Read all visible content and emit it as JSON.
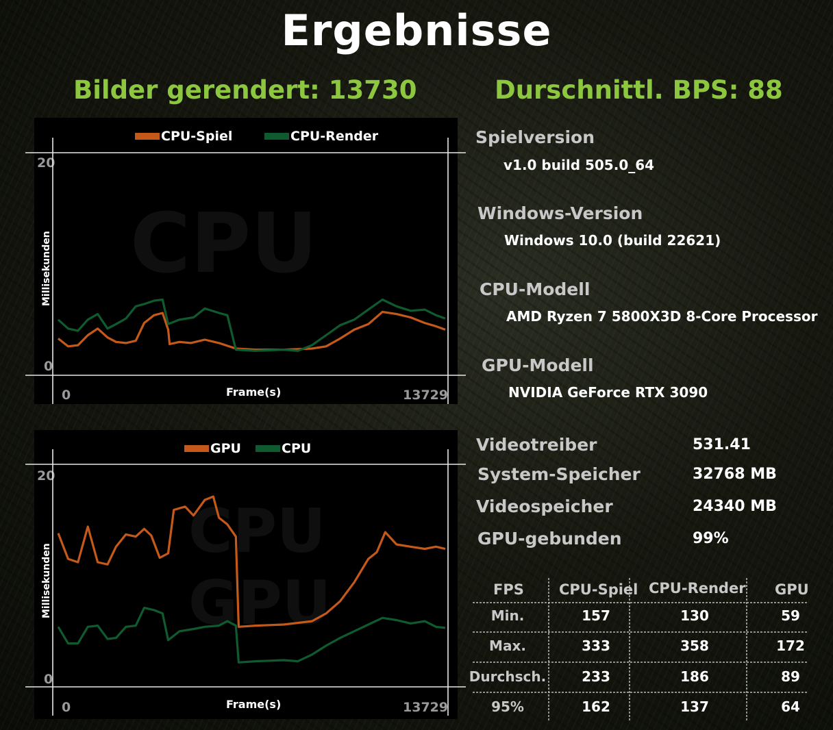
{
  "title": "Ergebnisse",
  "summary": {
    "frames_label": "Bilder gerendert: 13730",
    "avg_label": "Durschnittl. BPS: 88"
  },
  "colors": {
    "accent": "#8dc63f",
    "orange": "#c4591a",
    "green": "#0f5a2e"
  },
  "chart_data": [
    {
      "type": "line",
      "watermark": "CPU",
      "ylabel": "Millisekunden",
      "xlabel": "Frame(s)",
      "ylim": [
        0,
        20
      ],
      "xlim": [
        0,
        13729
      ],
      "y_ticks": [
        "20",
        "0"
      ],
      "x_ticks": [
        "0",
        "13729"
      ],
      "series": [
        {
          "name": "CPU-Spiel",
          "color": "#c4591a",
          "points": [
            [
              0,
              3.3
            ],
            [
              350,
              2.6
            ],
            [
              700,
              2.7
            ],
            [
              1050,
              3.6
            ],
            [
              1400,
              4.2
            ],
            [
              1750,
              3.4
            ],
            [
              2050,
              3.0
            ],
            [
              2400,
              2.9
            ],
            [
              2750,
              3.1
            ],
            [
              3050,
              4.7
            ],
            [
              3400,
              5.4
            ],
            [
              3700,
              5.6
            ],
            [
              3900,
              4.1
            ],
            [
              3950,
              2.8
            ],
            [
              4300,
              3.0
            ],
            [
              4700,
              2.9
            ],
            [
              5200,
              3.2
            ],
            [
              5700,
              2.9
            ],
            [
              6300,
              2.4
            ],
            [
              7000,
              2.3
            ],
            [
              8000,
              2.3
            ],
            [
              9000,
              2.4
            ],
            [
              9500,
              2.6
            ],
            [
              10000,
              3.3
            ],
            [
              10500,
              4.1
            ],
            [
              11000,
              4.6
            ],
            [
              11500,
              5.7
            ],
            [
              12000,
              5.5
            ],
            [
              12500,
              5.2
            ],
            [
              13000,
              4.7
            ],
            [
              13400,
              4.4
            ],
            [
              13729,
              4.1
            ]
          ]
        },
        {
          "name": "CPU-Render",
          "color": "#0f5a2e",
          "points": [
            [
              0,
              5.0
            ],
            [
              350,
              4.2
            ],
            [
              700,
              4.0
            ],
            [
              1050,
              5.0
            ],
            [
              1400,
              5.5
            ],
            [
              1750,
              4.2
            ],
            [
              2050,
              4.6
            ],
            [
              2400,
              5.1
            ],
            [
              2750,
              6.2
            ],
            [
              3050,
              6.4
            ],
            [
              3400,
              6.7
            ],
            [
              3700,
              6.8
            ],
            [
              3900,
              4.6
            ],
            [
              4300,
              5.0
            ],
            [
              4800,
              5.2
            ],
            [
              5200,
              6.0
            ],
            [
              5700,
              5.6
            ],
            [
              6000,
              5.4
            ],
            [
              6300,
              2.3
            ],
            [
              7000,
              2.2
            ],
            [
              8000,
              2.3
            ],
            [
              8500,
              2.2
            ],
            [
              9000,
              2.7
            ],
            [
              9500,
              3.6
            ],
            [
              10000,
              4.5
            ],
            [
              10500,
              5.0
            ],
            [
              11000,
              5.9
            ],
            [
              11500,
              6.8
            ],
            [
              12000,
              6.2
            ],
            [
              12500,
              5.8
            ],
            [
              13000,
              5.9
            ],
            [
              13400,
              5.4
            ],
            [
              13729,
              5.1
            ]
          ]
        }
      ]
    },
    {
      "type": "line",
      "watermark": "CPU GPU",
      "ylabel": "Millisekunden",
      "xlabel": "Frame(s)",
      "ylim": [
        0,
        20
      ],
      "xlim": [
        0,
        13729
      ],
      "y_ticks": [
        "20",
        "0"
      ],
      "x_ticks": [
        "0",
        "13729"
      ],
      "series": [
        {
          "name": "GPU",
          "color": "#c4591a",
          "points": [
            [
              0,
              13.8
            ],
            [
              350,
              11.5
            ],
            [
              700,
              11.2
            ],
            [
              1050,
              14.4
            ],
            [
              1400,
              11.2
            ],
            [
              1750,
              11.0
            ],
            [
              2050,
              12.6
            ],
            [
              2400,
              13.7
            ],
            [
              2750,
              13.5
            ],
            [
              3050,
              14.2
            ],
            [
              3300,
              13.6
            ],
            [
              3600,
              11.6
            ],
            [
              3900,
              12.0
            ],
            [
              4100,
              15.9
            ],
            [
              4500,
              16.2
            ],
            [
              4800,
              15.4
            ],
            [
              5200,
              16.8
            ],
            [
              5500,
              17.1
            ],
            [
              5700,
              15.2
            ],
            [
              6000,
              14.6
            ],
            [
              6300,
              13.5
            ],
            [
              6400,
              5.4
            ],
            [
              7000,
              5.5
            ],
            [
              8000,
              5.6
            ],
            [
              9000,
              5.9
            ],
            [
              9500,
              6.6
            ],
            [
              10000,
              7.7
            ],
            [
              10500,
              9.4
            ],
            [
              11000,
              11.5
            ],
            [
              11300,
              12.1
            ],
            [
              11600,
              13.9
            ],
            [
              12000,
              12.8
            ],
            [
              12500,
              12.6
            ],
            [
              13000,
              12.4
            ],
            [
              13400,
              12.6
            ],
            [
              13729,
              12.4
            ]
          ]
        },
        {
          "name": "CPU",
          "color": "#0f5a2e",
          "points": [
            [
              0,
              5.4
            ],
            [
              350,
              3.9
            ],
            [
              700,
              3.9
            ],
            [
              1050,
              5.4
            ],
            [
              1400,
              5.5
            ],
            [
              1750,
              4.3
            ],
            [
              2050,
              4.4
            ],
            [
              2400,
              5.4
            ],
            [
              2750,
              5.5
            ],
            [
              3050,
              7.1
            ],
            [
              3400,
              6.9
            ],
            [
              3700,
              6.6
            ],
            [
              3900,
              4.2
            ],
            [
              4300,
              5.0
            ],
            [
              4800,
              5.2
            ],
            [
              5200,
              5.4
            ],
            [
              5700,
              5.5
            ],
            [
              6000,
              5.9
            ],
            [
              6300,
              5.5
            ],
            [
              6400,
              2.2
            ],
            [
              7000,
              2.3
            ],
            [
              8000,
              2.4
            ],
            [
              8500,
              2.3
            ],
            [
              9000,
              2.9
            ],
            [
              9500,
              3.7
            ],
            [
              10000,
              4.4
            ],
            [
              10500,
              5.0
            ],
            [
              11000,
              5.6
            ],
            [
              11500,
              6.2
            ],
            [
              12000,
              6.0
            ],
            [
              12500,
              5.7
            ],
            [
              13000,
              5.9
            ],
            [
              13400,
              5.4
            ],
            [
              13729,
              5.3
            ]
          ]
        }
      ]
    }
  ],
  "info": {
    "game_version_label": "Spielversion",
    "game_version": "v1.0 build 505.0_64",
    "windows_label": "Windows-Version",
    "windows": "Windows 10.0 (build 22621)",
    "cpu_label": "CPU-Modell",
    "cpu": "AMD Ryzen 7 5800X3D 8-Core Processor",
    "gpu_label": "GPU-Modell",
    "gpu": "NVIDIA GeForce RTX 3090",
    "driver_label": "Videotreiber",
    "driver": "531.41",
    "sysmem_label": "System-Speicher",
    "sysmem": "32768 MB",
    "vidmem_label": "Videospeicher",
    "vidmem": "24340 MB",
    "gpubound_label": "GPU-gebunden",
    "gpubound": "99%"
  },
  "fps_table": {
    "headers": [
      "FPS",
      "CPU-Spiel",
      "CPU-Render",
      "GPU"
    ],
    "rows": [
      {
        "label": "Min.",
        "values": [
          "157",
          "130",
          "59"
        ]
      },
      {
        "label": "Max.",
        "values": [
          "333",
          "358",
          "172"
        ]
      },
      {
        "label": "Durchsch.",
        "values": [
          "233",
          "186",
          "89"
        ]
      },
      {
        "label": "95%",
        "values": [
          "162",
          "137",
          "64"
        ]
      }
    ]
  }
}
